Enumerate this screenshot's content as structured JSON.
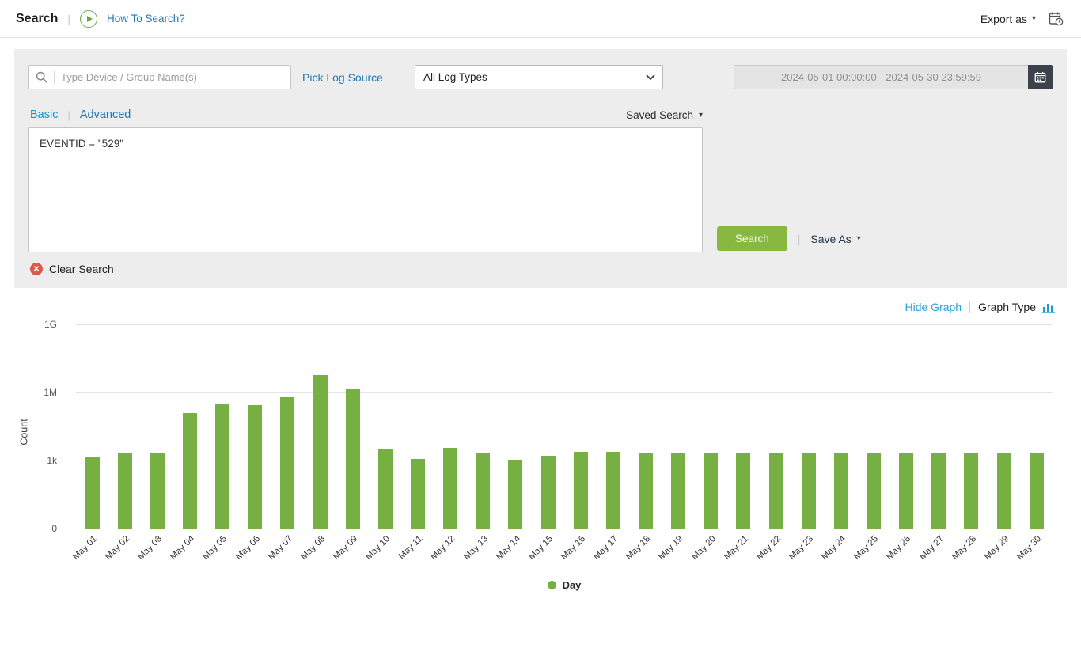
{
  "header": {
    "title": "Search",
    "how_to_link": "How To Search?",
    "export_label": "Export as"
  },
  "search_panel": {
    "device_placeholder": "Type Device / Group Name(s)",
    "pick_log_source_label": "Pick Log Source",
    "log_type_selected": "All Log Types",
    "date_range_value": "2024-05-01 00:00:00 - 2024-05-30 23:59:59",
    "tab_basic": "Basic",
    "tab_advanced": "Advanced",
    "saved_search_label": "Saved Search",
    "query_text": "EVENTID = \"529\"",
    "search_button_label": "Search",
    "save_as_label": "Save As",
    "clear_search_label": "Clear Search"
  },
  "graph_controls": {
    "hide_graph_label": "Hide Graph",
    "graph_type_label": "Graph Type"
  },
  "colors": {
    "bar_green": "#76b043",
    "button_green": "#87b841",
    "link_blue": "#1d78b5",
    "light_blue": "#2aa3da",
    "clear_red": "#e2574c",
    "calendar_button_bg": "#3c414b"
  },
  "chart_data": {
    "type": "bar",
    "ylabel": "Count",
    "scale": "log",
    "ymax": 1000000000,
    "yticks": [
      {
        "label": "1G",
        "value": 1000000000,
        "gridline": true
      },
      {
        "label": "1M",
        "value": 1000000,
        "gridline": true
      },
      {
        "label": "1k",
        "value": 1000,
        "gridline": false
      },
      {
        "label": "0",
        "value": 0,
        "gridline": false
      }
    ],
    "categories": [
      "May 01",
      "May 02",
      "May 03",
      "May 04",
      "May 05",
      "May 06",
      "May 07",
      "May 08",
      "May 09",
      "May 10",
      "May 11",
      "May 12",
      "May 13",
      "May 14",
      "May 15",
      "May 16",
      "May 17",
      "May 18",
      "May 19",
      "May 20",
      "May 21",
      "May 22",
      "May 23",
      "May 24",
      "May 25",
      "May 26",
      "May 27",
      "May 28",
      "May 29",
      "May 30"
    ],
    "series": [
      {
        "name": "Day",
        "color": "#76b043",
        "values": [
          1500,
          2000,
          2000,
          120000,
          300000,
          280000,
          600000,
          6000000,
          1400000,
          3000,
          1200,
          3500,
          2200,
          1050,
          1600,
          2400,
          2400,
          2300,
          2100,
          2000,
          2200,
          2200,
          2200,
          2200,
          2100,
          2200,
          2200,
          2200,
          2100,
          2200
        ]
      }
    ],
    "legend_position": "bottom"
  }
}
